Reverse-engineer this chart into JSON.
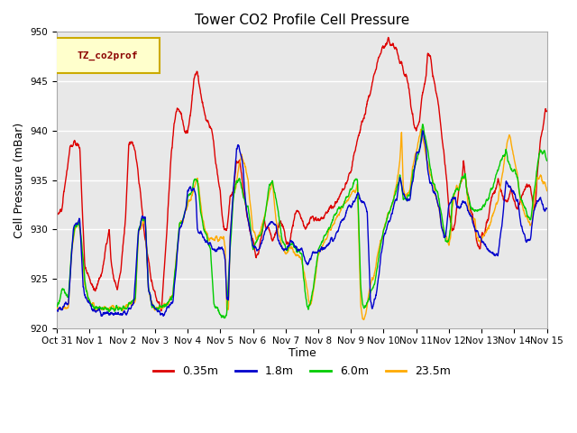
{
  "title": "Tower CO2 Profile Cell Pressure",
  "ylabel": "Cell Pressure (mBar)",
  "xlabel": "Time",
  "ylim": [
    920,
    950
  ],
  "xlim": [
    0,
    15
  ],
  "figure_bg": "#ffffff",
  "plot_bg_color": "#e8e8e8",
  "grid_color": "white",
  "colors": {
    "0.35m": "#dd0000",
    "1.8m": "#0000cc",
    "6.0m": "#00cc00",
    "23.5m": "#ffaa00"
  },
  "legend_label": "TZ_co2prof",
  "legend_box_color": "#ffffcc",
  "legend_box_edge": "#ccaa00",
  "tick_labels": [
    "Oct 31",
    "Nov 1",
    "Nov 2",
    "Nov 3",
    "Nov 4",
    "Nov 5",
    "Nov 6",
    "Nov 7",
    "Nov 8",
    "Nov 9",
    "Nov 10",
    "Nov 11",
    "Nov 12",
    "Nov 13",
    "Nov 14",
    "Nov 15"
  ],
  "title_fontsize": 11,
  "axis_fontsize": 9,
  "tick_fontsize": 7.5,
  "lw": 1.0
}
